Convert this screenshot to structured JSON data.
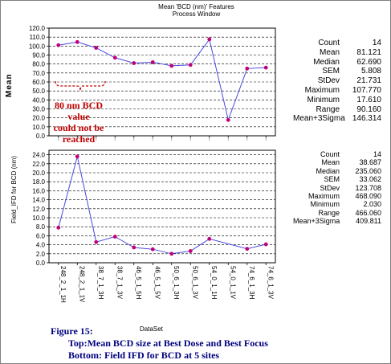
{
  "chart_data": [
    {
      "type": "line",
      "title": "Mean 'BCD (nm)' Features",
      "subtitle": "Process Window",
      "xlabel": "",
      "ylabel": "Mean",
      "categories": [
        "248_2_1_1H",
        "248_2_1_1V",
        "38_7_1_3H",
        "38_7_1_3V",
        "46_5_1_5H",
        "46_5_1_5V",
        "50_6_1_3H",
        "50_6_1_3V",
        "54_0_1_1H",
        "54_0_1_1V",
        "74_6_1_3H",
        "74_6_1_3V"
      ],
      "series": [
        {
          "values": [
            101.0,
            104.5,
            98.0,
            87.0,
            81.0,
            82.0,
            78.0,
            79.0,
            107.5,
            17.6,
            75.0,
            76.0
          ]
        }
      ],
      "ylim": [
        0,
        120
      ],
      "yticks": [
        "0.0",
        "10.0",
        "20.0",
        "30.0",
        "40.0",
        "50.0",
        "60.0",
        "70.0",
        "80.0",
        "90.0",
        "100.0",
        "110.0",
        "120.0"
      ],
      "grid": true,
      "line_color": "#4a4ae0",
      "marker_color": "#c0007a"
    },
    {
      "type": "line",
      "title": "",
      "xlabel": "DataSet",
      "ylabel": "Field_IFD for BCD (nm)",
      "categories": [
        "248_2_1_1H",
        "248_2_1_1V",
        "38_7_1_3H",
        "38_7_1_3V",
        "46_5_1_5H",
        "46_5_1_5V",
        "50_6_1_3H",
        "50_6_1_3V",
        "54_0_1_1H",
        "54_0_1_1V",
        "74_6_1_3H",
        "74_6_1_3V"
      ],
      "series": [
        {
          "values": [
            7.8,
            23.6,
            4.6,
            5.8,
            3.4,
            3.0,
            2.0,
            2.6,
            5.3,
            null,
            3.1,
            4.1
          ]
        }
      ],
      "ylim": [
        0,
        25
      ],
      "yticks": [
        "0.0",
        "2.0",
        "4.0",
        "6.0",
        "8.0",
        "10.0",
        "12.0",
        "14.0",
        "16.0",
        "18.0",
        "20.0",
        "22.0",
        "24.0"
      ],
      "grid": true,
      "line_color": "#4a4ae0",
      "marker_color": "#c0007a"
    }
  ],
  "x_tick_labels": [
    "248_2_1_1H",
    "248_2_1_1V",
    "38_7_1_3H",
    "38_7_1_3V",
    "46_5_1_5H",
    "46_5_1_5V",
    "50_6_1_3H",
    "50_6_1_3V",
    "54_0_1_1H",
    "54_0_1_1V",
    "74_6_1_3H",
    "74_6_1_3V"
  ],
  "stats_top": [
    {
      "label": "Count",
      "value": "14"
    },
    {
      "label": "Mean",
      "value": "81.121"
    },
    {
      "label": "Median",
      "value": "62.690"
    },
    {
      "label": "SEM",
      "value": "5.808"
    },
    {
      "label": "StDev",
      "value": "21.731"
    },
    {
      "label": "Maximum",
      "value": "107.770"
    },
    {
      "label": "Minimum",
      "value": "17.610"
    },
    {
      "label": "Range",
      "value": "90.160"
    },
    {
      "label": "Mean+3Sigma",
      "value": "146.314"
    }
  ],
  "stats_bottom": [
    {
      "label": "Count",
      "value": "14"
    },
    {
      "label": "Mean",
      "value": "38.687"
    },
    {
      "label": "Median",
      "value": "235.060"
    },
    {
      "label": "SEM",
      "value": "33.062"
    },
    {
      "label": "StDev",
      "value": "123.708"
    },
    {
      "label": "Maximum",
      "value": "468.090"
    },
    {
      "label": "Minimum",
      "value": "2.030"
    },
    {
      "label": "Range",
      "value": "466.060"
    },
    {
      "label": "Mean+3Sigma",
      "value": "409.811"
    }
  ],
  "annotation": {
    "lines": [
      "80 nm BCD value",
      "could not be",
      "reached"
    ],
    "color": "#c00000"
  },
  "caption": {
    "number": "Figure 15:",
    "top": "Top:Mean BCD size at Best Dose and Best Focus",
    "bottom": "Bottom: Field IFD for BCD at 5 sites",
    "color": "#000080"
  }
}
